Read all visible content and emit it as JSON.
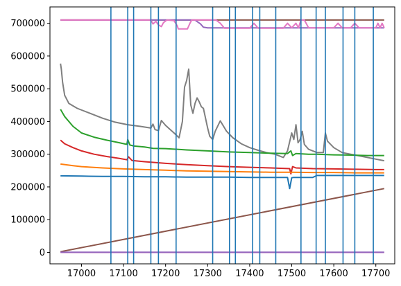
{
  "chart_data": {
    "type": "line",
    "title": "",
    "xlabel": "",
    "ylabel": "",
    "xlim": [
      16925,
      17745
    ],
    "ylim": [
      -35000,
      750000
    ],
    "xticks": [
      17000,
      17100,
      17200,
      17300,
      17400,
      17500,
      17600,
      17700
    ],
    "yticks": [
      0,
      100000,
      200000,
      300000,
      400000,
      500000,
      600000,
      700000
    ],
    "grid": false,
    "legend": "none",
    "vlines": {
      "color": "#1f77b4",
      "x": [
        17070,
        17110,
        17124,
        17165,
        17183,
        17225,
        17312,
        17352,
        17366,
        17407,
        17424,
        17462,
        17522,
        17558,
        17580,
        17622,
        17650,
        17694
      ]
    },
    "series": [
      {
        "color": "#8c564b",
        "x": [
          16950,
          17720
        ],
        "y": [
          710000,
          710000
        ]
      },
      {
        "color": "#9467bd",
        "x": [
          16950,
          17270,
          17283,
          17290,
          17300,
          17720
        ],
        "y": [
          710000,
          710000,
          698000,
          688000,
          686000,
          686000
        ]
      },
      {
        "color": "#e377c2",
        "x": [
          16950,
          17165,
          17170,
          17177,
          17183,
          17190,
          17195,
          17203,
          17220,
          17228,
          17230,
          17238,
          17252,
          17258,
          17262,
          17300,
          17320,
          17330,
          17340,
          17352,
          17360,
          17400,
          17410,
          17420,
          17480,
          17490,
          17500,
          17510,
          17516,
          17522,
          17530,
          17540,
          17550,
          17560,
          17570,
          17580,
          17600,
          17610,
          17620,
          17640,
          17650,
          17660,
          17700,
          17705,
          17710,
          17715,
          17720
        ],
        "y": [
          710000,
          710000,
          698000,
          706000,
          695000,
          690000,
          702000,
          710000,
          708000,
          692000,
          683000,
          683000,
          683000,
          700000,
          710000,
          710000,
          710000,
          700000,
          685000,
          685000,
          685000,
          685000,
          700000,
          685000,
          685000,
          700000,
          686000,
          700000,
          686000,
          710000,
          710000,
          686000,
          686000,
          686000,
          686000,
          686000,
          686000,
          700000,
          686000,
          686000,
          700000,
          686000,
          686000,
          700000,
          686000,
          700000,
          686000
        ]
      },
      {
        "color": "#7f7f7f",
        "x": [
          16950,
          16952,
          16955,
          16960,
          16970,
          16990,
          17020,
          17050,
          17080,
          17110,
          17140,
          17165,
          17170,
          17175,
          17183,
          17190,
          17200,
          17220,
          17232,
          17240,
          17245,
          17250,
          17255,
          17260,
          17265,
          17270,
          17275,
          17280,
          17285,
          17290,
          17300,
          17305,
          17312,
          17318,
          17330,
          17345,
          17360,
          17380,
          17400,
          17420,
          17440,
          17460,
          17480,
          17490,
          17500,
          17505,
          17510,
          17515,
          17520,
          17525,
          17530,
          17540,
          17560,
          17575,
          17580,
          17585,
          17600,
          17620,
          17640,
          17660,
          17680,
          17700,
          17720
        ],
        "y": [
          577000,
          560000,
          520000,
          480000,
          455000,
          440000,
          425000,
          410000,
          398000,
          390000,
          385000,
          380000,
          392000,
          375000,
          372000,
          403000,
          388000,
          365000,
          350000,
          400000,
          505000,
          525000,
          560000,
          450000,
          425000,
          455000,
          472000,
          460000,
          445000,
          440000,
          380000,
          355000,
          345000,
          370000,
          402000,
          370000,
          350000,
          332000,
          320000,
          312000,
          305000,
          300000,
          290000,
          310000,
          365000,
          345000,
          390000,
          335000,
          345000,
          370000,
          330000,
          315000,
          305000,
          305000,
          365000,
          340000,
          320000,
          305000,
          300000,
          295000,
          290000,
          285000,
          280000
        ]
      },
      {
        "color": "#2ca02c",
        "x": [
          16950,
          16960,
          16980,
          17000,
          17030,
          17060,
          17090,
          17108,
          17110,
          17115,
          17125,
          17150,
          17170,
          17200,
          17250,
          17300,
          17350,
          17400,
          17450,
          17490,
          17498,
          17502,
          17510,
          17540,
          17560,
          17600,
          17650,
          17680,
          17720
        ],
        "y": [
          437000,
          415000,
          385000,
          365000,
          352000,
          343000,
          335000,
          330000,
          345000,
          328000,
          325000,
          322000,
          318000,
          317000,
          313000,
          310000,
          307000,
          305000,
          303000,
          302000,
          310000,
          296000,
          302000,
          300000,
          300000,
          298000,
          297000,
          296000,
          296000
        ]
      },
      {
        "color": "#d62728",
        "x": [
          16950,
          16960,
          16980,
          17000,
          17030,
          17060,
          17090,
          17108,
          17112,
          17120,
          17150,
          17200,
          17250,
          17300,
          17350,
          17400,
          17450,
          17495,
          17498,
          17502,
          17510,
          17550,
          17600,
          17650,
          17700,
          17720
        ],
        "y": [
          343000,
          332000,
          320000,
          310000,
          300000,
          293000,
          287000,
          283000,
          292000,
          281000,
          277000,
          272000,
          268000,
          265000,
          262000,
          260000,
          258000,
          256000,
          240000,
          262000,
          258000,
          256000,
          255000,
          254000,
          253000,
          253000
        ]
      },
      {
        "color": "#ff7f0e",
        "x": [
          16950,
          16980,
          17000,
          17050,
          17100,
          17150,
          17200,
          17250,
          17300,
          17350,
          17400,
          17450,
          17500,
          17550,
          17600,
          17650,
          17700,
          17720
        ],
        "y": [
          270000,
          265000,
          262000,
          258000,
          255000,
          253000,
          251000,
          249000,
          248000,
          247000,
          246000,
          245000,
          245000,
          244000,
          244000,
          243000,
          243000,
          243000
        ]
      },
      {
        "color": "#1f77b4",
        "x": [
          16950,
          17000,
          17050,
          17100,
          17150,
          17200,
          17250,
          17300,
          17350,
          17400,
          17450,
          17490,
          17495,
          17500,
          17505,
          17520,
          17550,
          17560,
          17600,
          17650,
          17700,
          17720
        ],
        "y": [
          234000,
          233000,
          232000,
          232000,
          231000,
          231000,
          230000,
          230000,
          230000,
          229000,
          229000,
          229000,
          195000,
          228000,
          229000,
          229000,
          229000,
          235000,
          235000,
          235000,
          235000,
          235000
        ]
      },
      {
        "color": "#8c564b",
        "x": [
          16950,
          17720
        ],
        "y": [
          2000,
          195000
        ]
      },
      {
        "color": "#e377c2",
        "x": [
          16950,
          17720
        ],
        "y": [
          0,
          0
        ]
      },
      {
        "color": "#9467bd",
        "x": [
          16950,
          17720
        ],
        "y": [
          600,
          600
        ]
      }
    ]
  }
}
